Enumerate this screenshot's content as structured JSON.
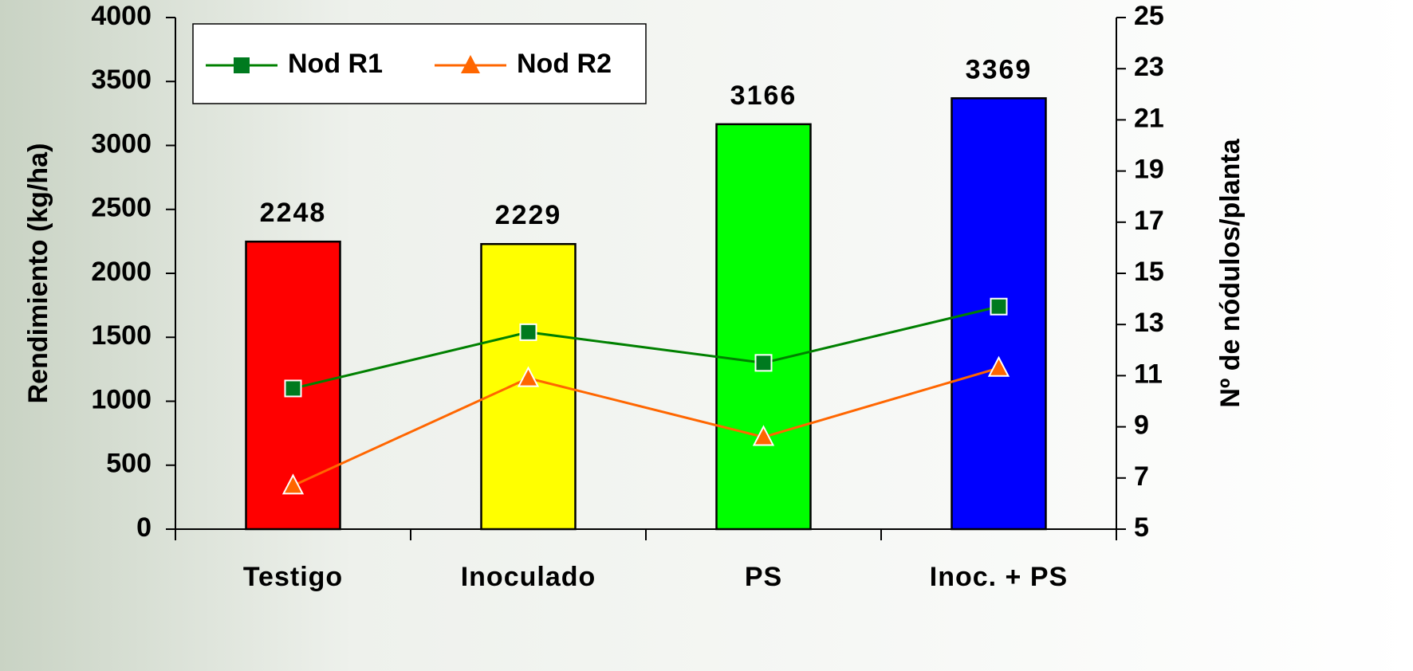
{
  "chart_data": {
    "type": "bar",
    "categories": [
      "Testigo",
      "Inoculado",
      "PS",
      "Inoc. + PS"
    ],
    "values": [
      2248,
      2229,
      3166,
      3369
    ],
    "colors": [
      "#ff0000",
      "#ffff00",
      "#00ff00",
      "#0000ff"
    ],
    "series": [
      {
        "name": "Nod R1",
        "type": "line",
        "marker": "square",
        "color": "#008000",
        "marker_color": "#007a1f",
        "axis": "y2",
        "values": [
          10.5,
          12.7,
          11.5,
          13.7
        ]
      },
      {
        "name": "Nod R2",
        "type": "line",
        "marker": "triangle",
        "color": "#ff6600",
        "marker_color": "#ff6600",
        "axis": "y2",
        "values": [
          6.7,
          10.9,
          8.6,
          11.3
        ]
      }
    ],
    "ylabel": "Rendimiento (kg/ha)",
    "y2label": "Nº de nódulos/planta",
    "ylim": [
      0,
      4000
    ],
    "yticks": [
      0,
      500,
      1000,
      1500,
      2000,
      2500,
      3000,
      3500,
      4000
    ],
    "y2lim": [
      5,
      25
    ],
    "y2ticks": [
      5,
      7,
      9,
      11,
      13,
      15,
      17,
      19,
      21,
      23,
      25
    ],
    "legend": "top-left"
  }
}
